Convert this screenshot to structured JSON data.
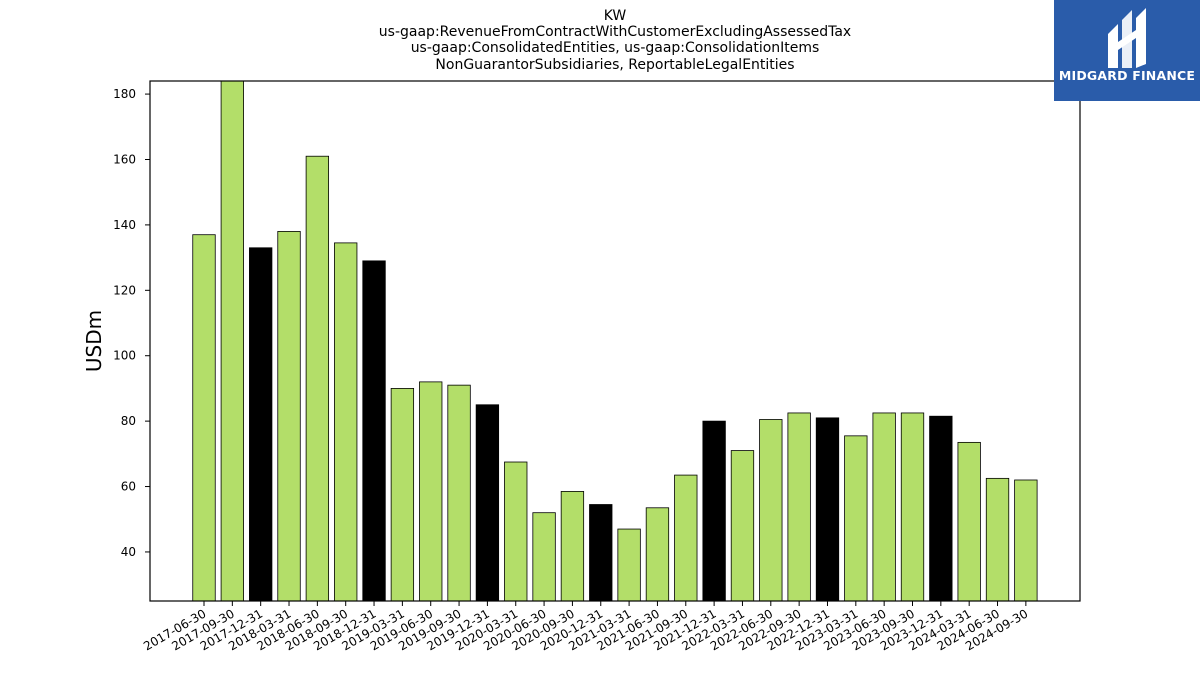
{
  "chart_data": {
    "type": "bar",
    "title_lines": [
      "KW",
      "us-gaap:RevenueFromContractWithCustomerExcludingAssessedTax",
      "us-gaap:ConsolidatedEntities, us-gaap:ConsolidationItems",
      "NonGuarantorSubsidiaries, ReportableLegalEntities"
    ],
    "xlabel": "",
    "ylabel": "USDm",
    "ylim": [
      25,
      184
    ],
    "yticks": [
      40,
      60,
      80,
      100,
      120,
      140,
      160,
      180
    ],
    "categories": [
      "2017-06-30",
      "2017-09-30",
      "2017-12-31",
      "2018-03-31",
      "2018-06-30",
      "2018-09-30",
      "2018-12-31",
      "2019-03-31",
      "2019-06-30",
      "2019-09-30",
      "2019-12-31",
      "2020-03-31",
      "2020-06-30",
      "2020-09-30",
      "2020-12-31",
      "2021-03-31",
      "2021-06-30",
      "2021-09-30",
      "2021-12-31",
      "2022-03-31",
      "2022-06-30",
      "2022-09-30",
      "2022-12-31",
      "2023-03-31",
      "2023-06-30",
      "2023-09-30",
      "2023-12-31",
      "2024-03-31",
      "2024-06-30",
      "2024-09-30"
    ],
    "values": [
      137,
      184,
      133,
      138,
      161,
      134.5,
      129,
      90,
      92,
      91,
      85,
      67.5,
      52,
      58.5,
      54.5,
      47,
      53.5,
      63.5,
      80,
      71,
      80.5,
      82.5,
      81,
      75.5,
      82.5,
      82.5,
      81.5,
      73.5,
      62.5,
      62
    ],
    "highlight": [
      false,
      false,
      true,
      false,
      false,
      false,
      true,
      false,
      false,
      false,
      true,
      false,
      false,
      false,
      true,
      false,
      false,
      false,
      true,
      false,
      false,
      false,
      true,
      false,
      false,
      false,
      true,
      false,
      false,
      false
    ],
    "colors": {
      "bar": "#b3de69",
      "highlight": "#000000",
      "edge": "#000000"
    },
    "grid": false,
    "legend": "none"
  },
  "logo": {
    "text": "MIDGARD FINANCE",
    "icon": "midgard-logo-icon",
    "background": "#2a5caa"
  }
}
